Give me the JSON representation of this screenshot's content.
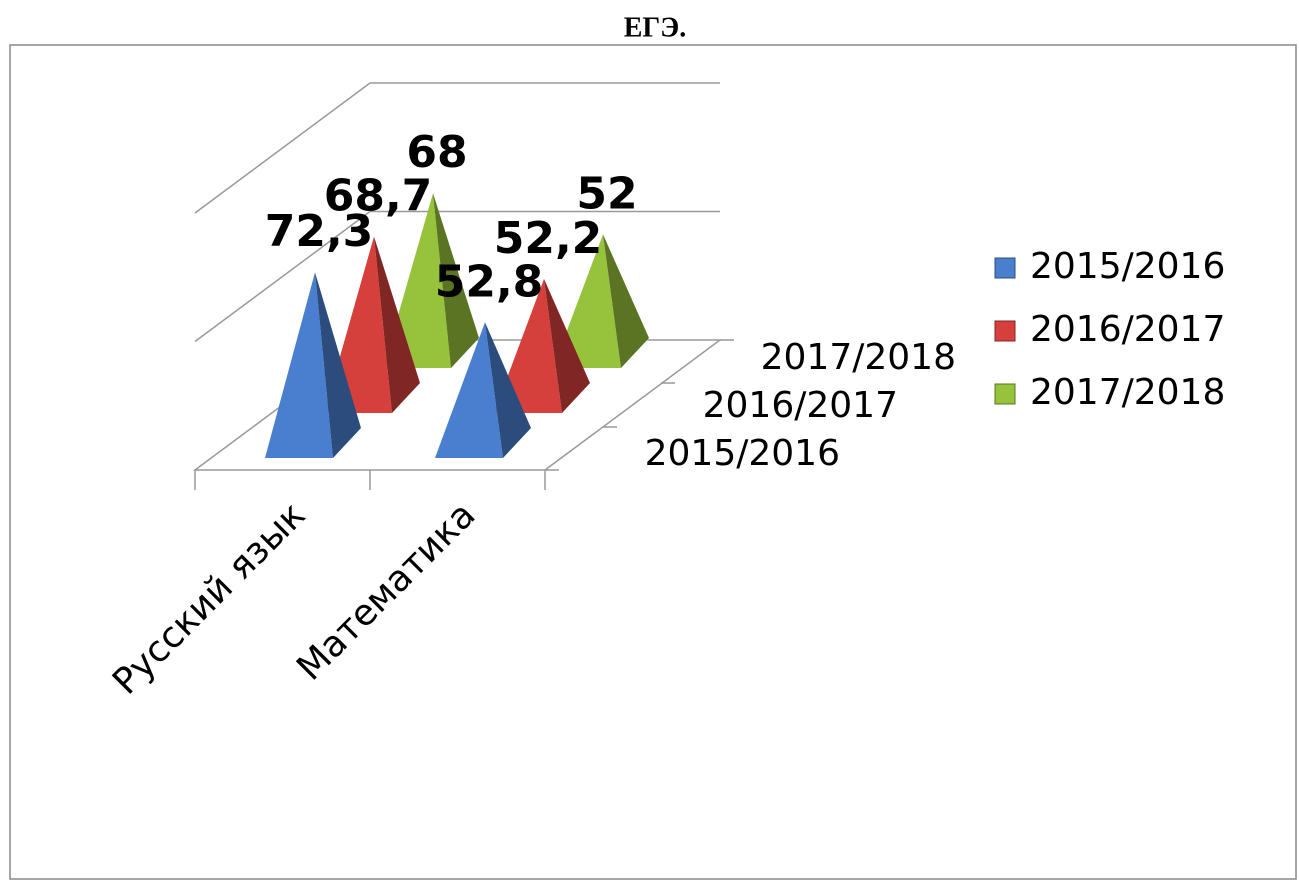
{
  "chart_data": {
    "type": "pyramid3d",
    "title": "ЕГЭ.",
    "categories": [
      "Русский язык",
      "Математика"
    ],
    "series": [
      {
        "name": "2015/2016",
        "color": "#4a7fd0",
        "values": [
          72.3,
          52.8
        ],
        "value_labels": [
          "72,3",
          "52,8"
        ]
      },
      {
        "name": "2016/2017",
        "color": "#d6403c",
        "values": [
          68.7,
          52.2
        ],
        "value_labels": [
          "68,7",
          "52,2"
        ]
      },
      {
        "name": "2017/2018",
        "color": "#96c23c",
        "values": [
          68,
          52
        ],
        "value_labels": [
          "68",
          "52"
        ]
      }
    ],
    "ylim": [
      0,
      100
    ],
    "yticks": [
      0,
      50,
      100
    ],
    "grid": true,
    "legend": "right"
  }
}
